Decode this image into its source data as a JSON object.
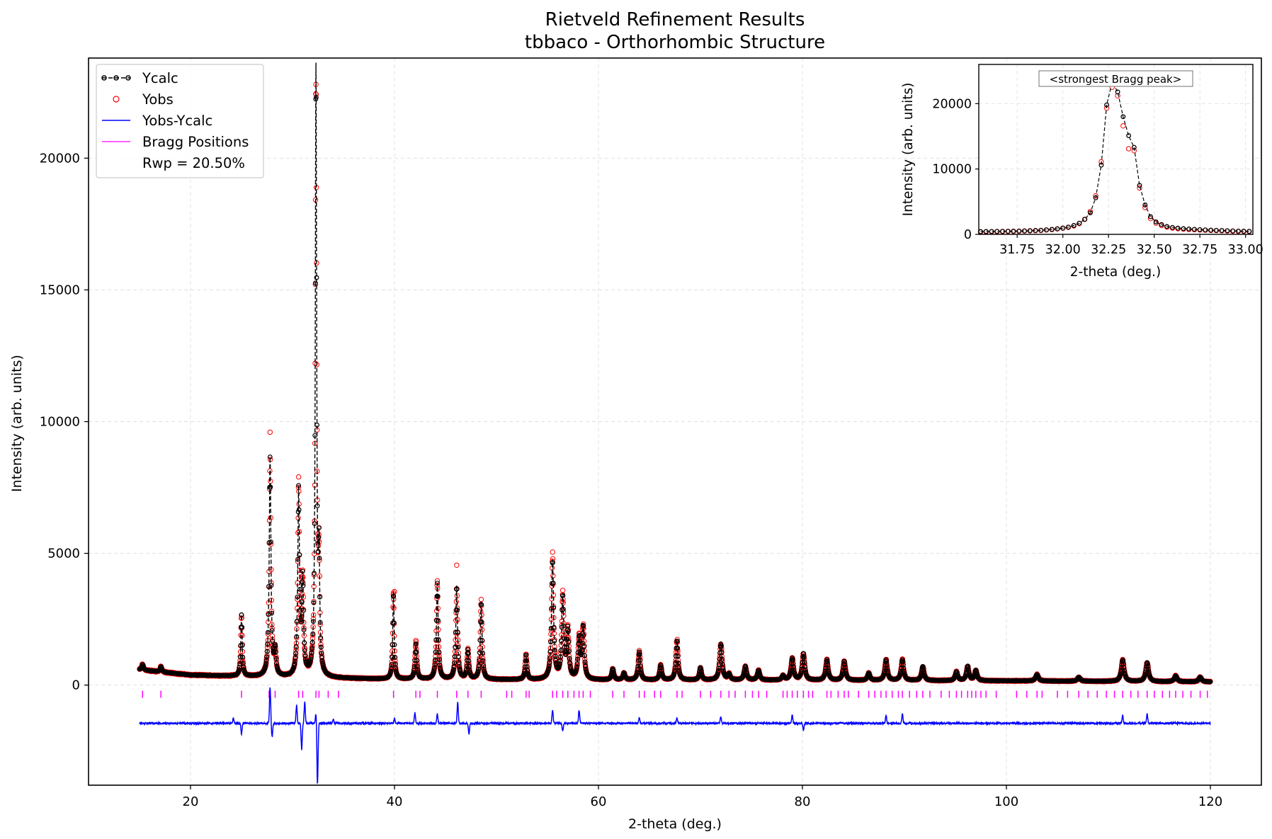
{
  "chart_data": [
    {
      "type": "line",
      "title": "Rietveld Refinement Results",
      "subtitle": "tbbaco - Orthorhombic Structure",
      "xlabel": "2-theta (deg.)",
      "ylabel": "Intensity (arb. units)",
      "xlim": [
        10,
        125
      ],
      "ylim": [
        -3800,
        23800
      ],
      "xticks": [
        20,
        40,
        60,
        80,
        100,
        120
      ],
      "yticks": [
        0,
        5000,
        10000,
        15000,
        20000
      ],
      "grid": true,
      "legend_position": "upper-left",
      "annotation": "Rwp = 20.50%",
      "series": [
        {
          "name": "Ycalc",
          "style": "black dashed line with open circle markers",
          "color": "#000000",
          "background": [
            [
              15,
              580
            ],
            [
              20,
              380
            ],
            [
              30,
              280
            ],
            [
              40,
              220
            ],
            [
              60,
              190
            ],
            [
              80,
              180
            ],
            [
              100,
              160
            ],
            [
              120,
              120
            ]
          ],
          "peaks": [
            [
              15.3,
              780,
              0.1
            ],
            [
              17.1,
              700,
              0.1
            ],
            [
              25.0,
              2650,
              0.08
            ],
            [
              27.8,
              8600,
              0.1
            ],
            [
              28.3,
              1200,
              0.1
            ],
            [
              30.6,
              7300,
              0.1
            ],
            [
              31.0,
              3800,
              0.1
            ],
            [
              32.3,
              23300,
              0.08
            ],
            [
              32.6,
              4400,
              0.08
            ],
            [
              39.9,
              3550,
              0.08
            ],
            [
              42.1,
              1600,
              0.1
            ],
            [
              44.2,
              3850,
              0.1
            ],
            [
              46.1,
              3750,
              0.1
            ],
            [
              47.2,
              1300,
              0.1
            ],
            [
              48.5,
              3150,
              0.1
            ],
            [
              52.9,
              1150,
              0.1
            ],
            [
              55.5,
              4700,
              0.12
            ],
            [
              56.5,
              3300,
              0.12
            ],
            [
              57.0,
              2000,
              0.12
            ],
            [
              58.1,
              1700,
              0.12
            ],
            [
              58.5,
              2150,
              0.12
            ],
            [
              61.4,
              600,
              0.12
            ],
            [
              62.5,
              450,
              0.12
            ],
            [
              64.0,
              1250,
              0.12
            ],
            [
              66.1,
              750,
              0.12
            ],
            [
              67.7,
              1700,
              0.12
            ],
            [
              70.0,
              650,
              0.12
            ],
            [
              72.0,
              1550,
              0.14
            ],
            [
              72.8,
              400,
              0.14
            ],
            [
              74.4,
              700,
              0.14
            ],
            [
              75.7,
              550,
              0.14
            ],
            [
              78.1,
              350,
              0.14
            ],
            [
              79.0,
              1000,
              0.14
            ],
            [
              80.1,
              1200,
              0.14
            ],
            [
              82.4,
              950,
              0.14
            ],
            [
              84.1,
              900,
              0.14
            ],
            [
              86.5,
              450,
              0.14
            ],
            [
              88.2,
              950,
              0.14
            ],
            [
              89.8,
              950,
              0.14
            ],
            [
              91.8,
              700,
              0.14
            ],
            [
              95.1,
              500,
              0.14
            ],
            [
              96.2,
              700,
              0.14
            ],
            [
              97.0,
              550,
              0.14
            ],
            [
              103.0,
              400,
              0.16
            ],
            [
              107.1,
              300,
              0.16
            ],
            [
              111.4,
              950,
              0.16
            ],
            [
              113.8,
              850,
              0.16
            ],
            [
              116.6,
              350,
              0.16
            ],
            [
              119.0,
              300,
              0.16
            ]
          ]
        },
        {
          "name": "Yobs",
          "style": "red open circle markers",
          "color": "#ff0000",
          "highlights": [
            [
              27.8,
              9600
            ],
            [
              30.6,
              7900
            ],
            [
              32.3,
              22800
            ],
            [
              46.1,
              4550
            ],
            [
              55.5,
              5050
            ],
            [
              40.0,
              3550
            ]
          ]
        },
        {
          "name": "Yobs-Ycalc",
          "style": "blue solid line",
          "color": "#0000ff",
          "offset": -1450,
          "features": [
            [
              24.2,
              200
            ],
            [
              25.0,
              -400
            ],
            [
              27.8,
              1350
            ],
            [
              28.0,
              -500
            ],
            [
              30.4,
              700
            ],
            [
              30.9,
              -1000
            ],
            [
              31.2,
              800
            ],
            [
              32.3,
              400
            ],
            [
              32.45,
              -2300
            ],
            [
              34.0,
              150
            ],
            [
              40.0,
              150
            ],
            [
              42.0,
              400
            ],
            [
              44.2,
              350
            ],
            [
              46.2,
              800
            ],
            [
              47.3,
              -400
            ],
            [
              55.5,
              500
            ],
            [
              56.5,
              -300
            ],
            [
              58.1,
              500
            ],
            [
              64.0,
              200
            ],
            [
              67.7,
              200
            ],
            [
              72.0,
              250
            ],
            [
              79.0,
              300
            ],
            [
              80.1,
              -250
            ],
            [
              88.2,
              300
            ],
            [
              89.8,
              350
            ],
            [
              111.4,
              300
            ],
            [
              113.8,
              350
            ]
          ]
        },
        {
          "name": "Bragg Positions",
          "style": "magenta vertical ticks",
          "color": "#ff00ff",
          "y": -350,
          "x": [
            15.3,
            17.1,
            25.0,
            27.7,
            28.3,
            30.6,
            31.0,
            32.3,
            32.6,
            33.5,
            34.5,
            39.9,
            42.1,
            42.5,
            44.2,
            46.1,
            47.2,
            48.5,
            51.0,
            51.5,
            52.9,
            53.2,
            55.5,
            55.9,
            56.5,
            57.0,
            57.6,
            58.1,
            58.5,
            59.2,
            61.4,
            62.5,
            64.0,
            64.5,
            65.5,
            66.1,
            67.7,
            68.2,
            70.0,
            71.0,
            72.0,
            72.8,
            73.4,
            74.4,
            75.1,
            75.7,
            76.5,
            78.1,
            78.5,
            79.0,
            79.5,
            80.1,
            80.6,
            81.0,
            82.4,
            82.8,
            83.5,
            84.1,
            84.5,
            85.5,
            86.5,
            87.1,
            87.7,
            88.2,
            88.8,
            89.4,
            89.8,
            90.5,
            91.2,
            91.8,
            92.5,
            93.6,
            94.4,
            95.1,
            95.6,
            96.2,
            96.6,
            97.0,
            97.5,
            98.0,
            99.0,
            101.0,
            102.0,
            103.0,
            103.5,
            105.0,
            106.0,
            107.1,
            108.0,
            108.9,
            109.8,
            110.6,
            111.4,
            112.2,
            112.9,
            113.8,
            114.5,
            115.3,
            116.0,
            116.6,
            117.3,
            118.1,
            119.0,
            119.7
          ]
        }
      ]
    },
    {
      "type": "line",
      "inset": true,
      "annotation": "<strongest Bragg peak>",
      "xlabel": "2-theta (deg.)",
      "ylabel": "Intensity (arb. units)",
      "xlim": [
        31.54,
        33.04
      ],
      "ylim": [
        0,
        26000
      ],
      "xticks": [
        31.75,
        32.0,
        32.25,
        32.5,
        32.75,
        33.0
      ],
      "xtick_labels": [
        "31.75",
        "32.00",
        "32.25",
        "32.50",
        "32.75",
        "33.00"
      ],
      "yticks": [
        0,
        10000,
        20000
      ],
      "grid": true,
      "series": [
        {
          "name": "Ycalc",
          "color": "#000000",
          "x": [
            31.55,
            31.58,
            31.61,
            31.64,
            31.67,
            31.7,
            31.73,
            31.76,
            31.79,
            31.82,
            31.85,
            31.88,
            31.91,
            31.94,
            31.97,
            32.0,
            32.03,
            32.06,
            32.09,
            32.12,
            32.15,
            32.18,
            32.21,
            32.24,
            32.27,
            32.3,
            32.33,
            32.36,
            32.39,
            32.42,
            32.45,
            32.48,
            32.51,
            32.54,
            32.57,
            32.6,
            32.63,
            32.66,
            32.69,
            32.72,
            32.75,
            32.78,
            32.81,
            32.84,
            32.87,
            32.9,
            32.93,
            32.96,
            32.99,
            33.02
          ],
          "y": [
            420,
            430,
            440,
            450,
            460,
            470,
            480,
            500,
            520,
            550,
            580,
            620,
            680,
            750,
            840,
            950,
            1100,
            1350,
            1700,
            2300,
            3300,
            5600,
            10600,
            19800,
            23300,
            21800,
            18000,
            15100,
            13300,
            7500,
            4500,
            2700,
            1900,
            1500,
            1200,
            1050,
            950,
            880,
            820,
            770,
            720,
            680,
            640,
            610,
            580,
            550,
            520,
            500,
            480,
            460
          ]
        },
        {
          "name": "Yobs",
          "color": "#ff0000",
          "x": [
            31.55,
            31.58,
            31.61,
            31.64,
            31.67,
            31.7,
            31.73,
            31.76,
            31.79,
            31.82,
            31.85,
            31.88,
            31.91,
            31.94,
            31.97,
            32.0,
            32.03,
            32.06,
            32.09,
            32.12,
            32.15,
            32.18,
            32.21,
            32.24,
            32.27,
            32.3,
            32.33,
            32.36,
            32.39,
            32.42,
            32.45,
            32.48,
            32.51,
            32.54,
            32.57,
            32.6,
            32.63,
            32.66,
            32.69,
            32.72,
            32.75,
            32.78,
            32.81,
            32.84,
            32.87,
            32.9,
            32.93,
            32.96,
            32.99,
            33.02
          ],
          "y": [
            380,
            390,
            410,
            420,
            440,
            450,
            470,
            490,
            510,
            540,
            570,
            610,
            670,
            740,
            830,
            940,
            1080,
            1300,
            1650,
            2300,
            3500,
            5900,
            11100,
            19300,
            22500,
            21200,
            16600,
            13100,
            12800,
            7100,
            4100,
            2400,
            1700,
            1350,
            1100,
            960,
            870,
            800,
            750,
            710,
            670,
            640,
            610,
            580,
            550,
            520,
            490,
            470,
            450,
            430
          ]
        }
      ]
    }
  ]
}
